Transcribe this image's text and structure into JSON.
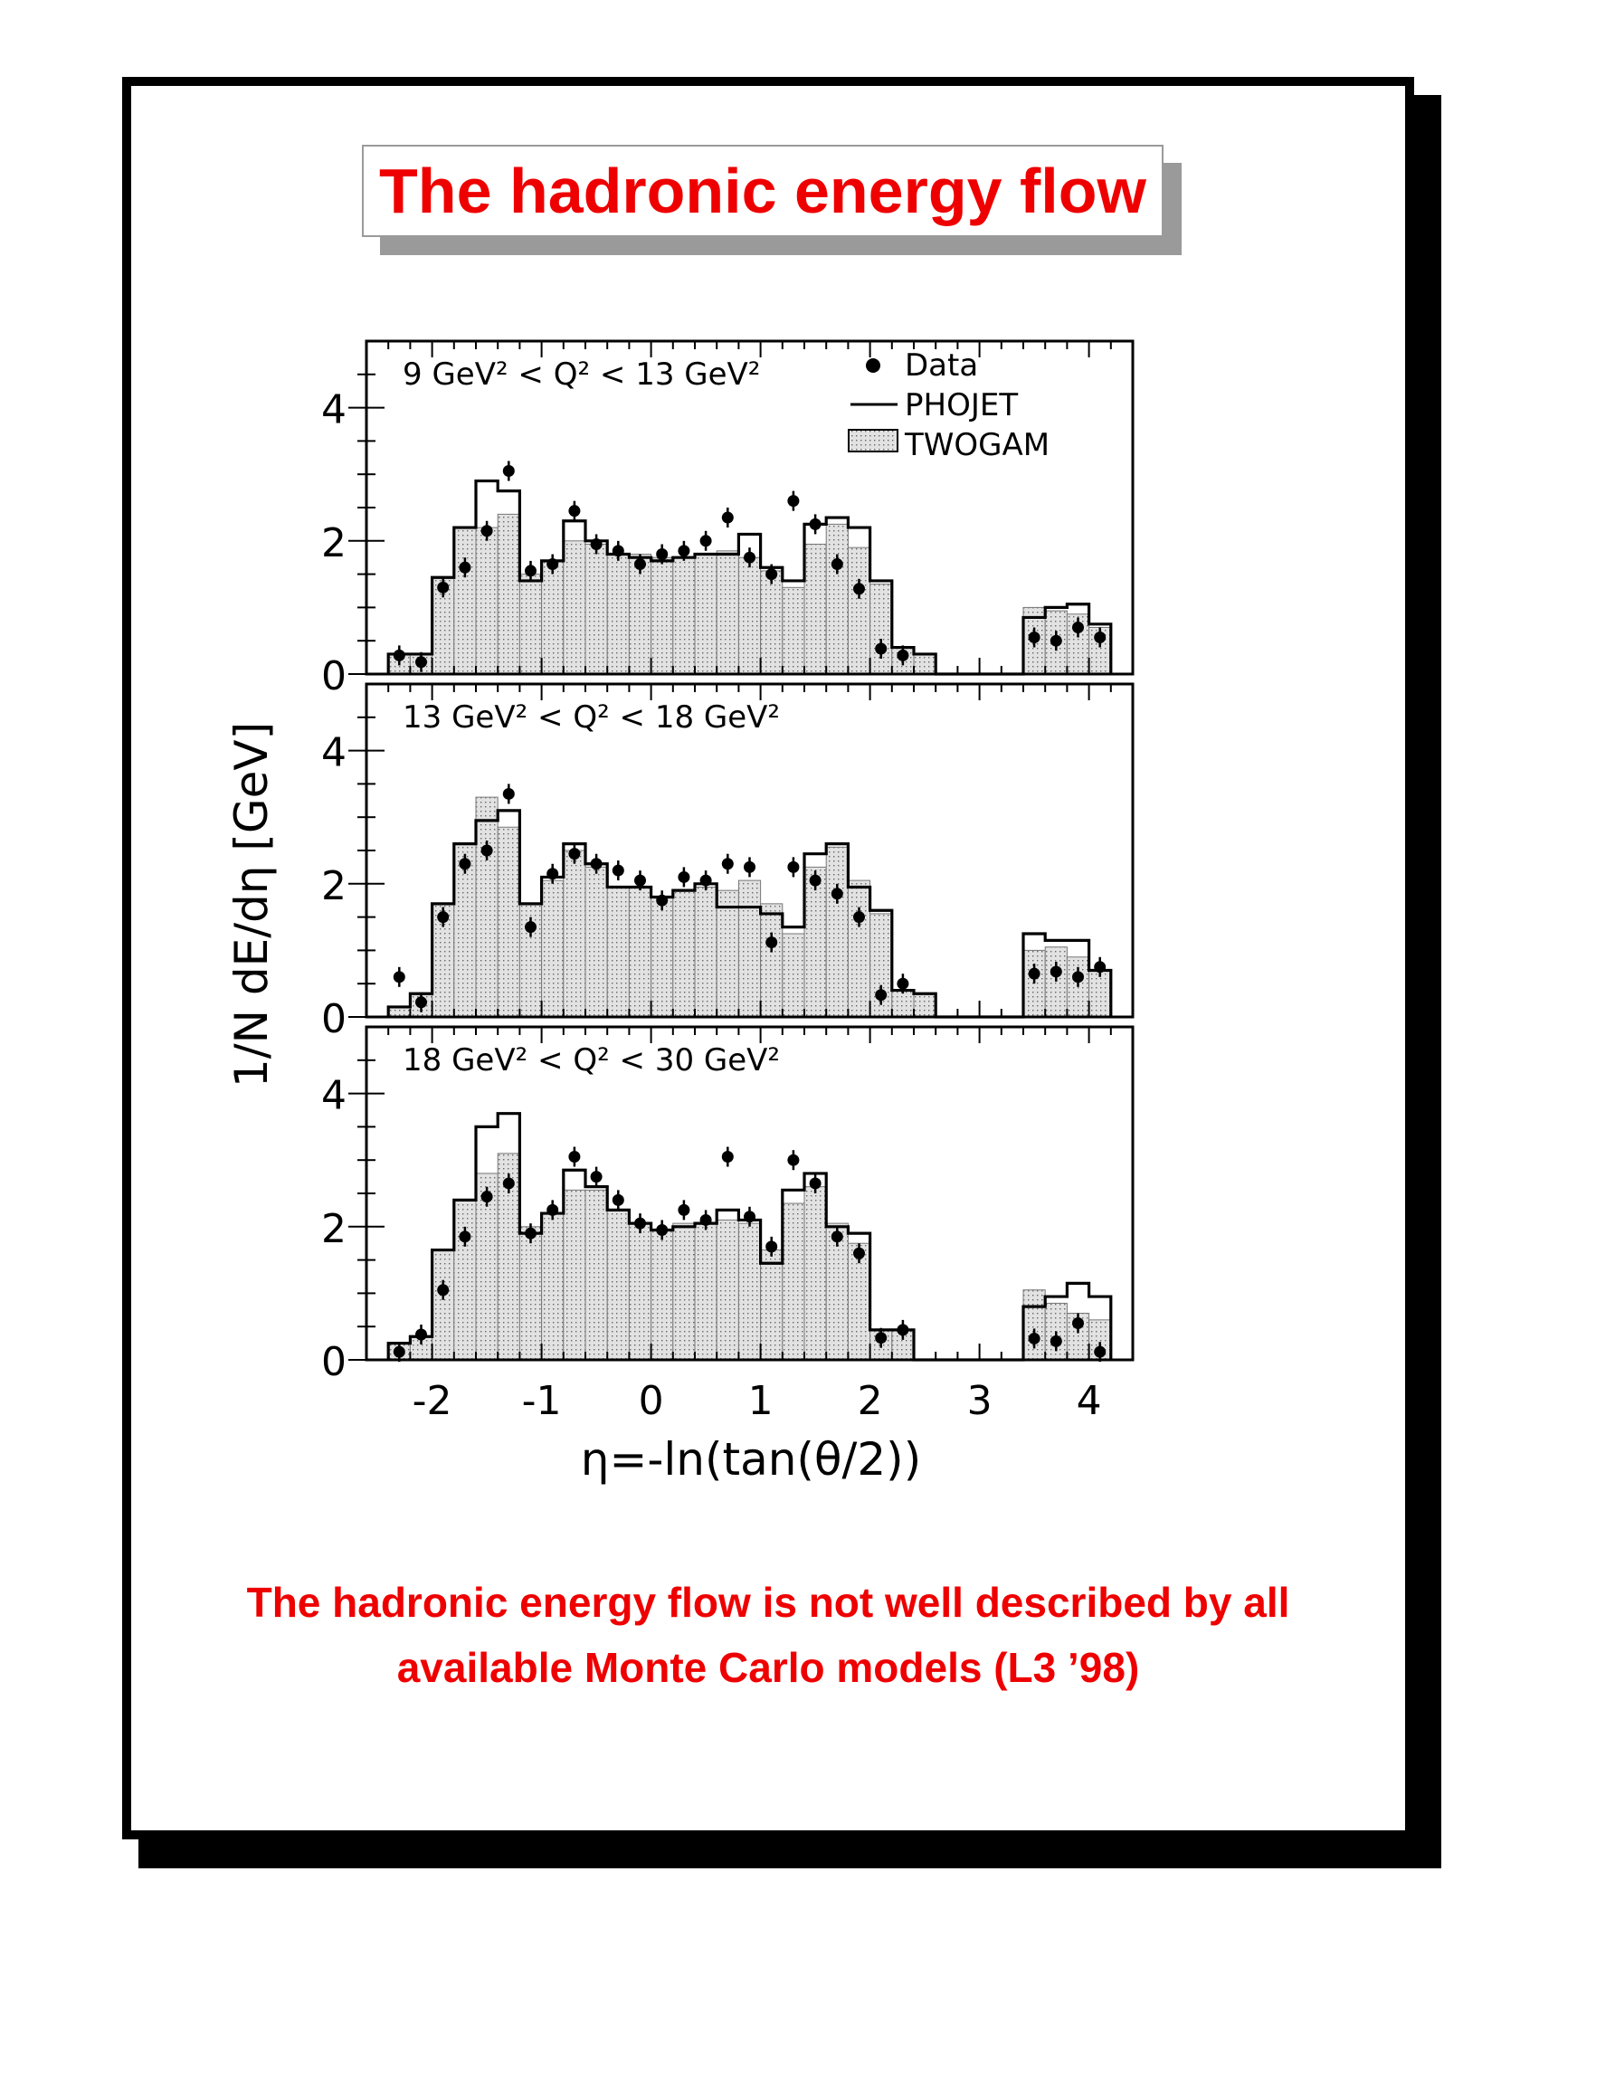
{
  "title": "The hadronic energy flow",
  "caption": {
    "line1": "The hadronic energy flow is not well described by all",
    "line2": "available Monte Carlo models (L3 ’98)"
  },
  "colors": {
    "accent": "#ee0000",
    "frame": "#000000",
    "title_shadow": "#9a9a9a",
    "fill": "#d8d8d8"
  },
  "chart_data": {
    "type": "histogram",
    "ylabel": "1/N dE/dη [GeV]",
    "xlabel": "η=-ln(tan(θ/2))",
    "xlim": [
      -2.6,
      4.4
    ],
    "ylim": [
      0,
      5
    ],
    "xticks": [
      "-2",
      "-1",
      "0",
      "1",
      "2",
      "3",
      "4"
    ],
    "yticks": [
      "0",
      "2",
      "4"
    ],
    "legend": {
      "position": "top-right",
      "entries": [
        "Data",
        "PHOJET",
        "TWOGAM"
      ]
    },
    "bin_edges": [
      -2.4,
      -2.2,
      -2.0,
      -1.8,
      -1.6,
      -1.4,
      -1.2,
      -1.0,
      -0.8,
      -0.6,
      -0.4,
      -0.2,
      0.0,
      0.2,
      0.4,
      0.6,
      0.8,
      1.0,
      1.2,
      1.4,
      1.6,
      1.8,
      2.0,
      2.2,
      2.4,
      2.6,
      2.8,
      3.0,
      3.2,
      3.4,
      3.6,
      3.8,
      4.0,
      4.2
    ],
    "panels": [
      {
        "label": "9 GeV² < Q² < 13 GeV²",
        "phojet": [
          0.3,
          0.3,
          1.45,
          2.2,
          2.9,
          2.75,
          1.4,
          1.7,
          2.3,
          2.0,
          1.8,
          1.75,
          1.7,
          1.75,
          1.8,
          1.8,
          2.1,
          1.6,
          1.4,
          2.25,
          2.35,
          2.2,
          1.4,
          0.4,
          0.3,
          0,
          0,
          0,
          0,
          0.85,
          1.0,
          1.05,
          0.75
        ],
        "twogam": [
          0.3,
          0.3,
          1.45,
          2.2,
          2.2,
          2.4,
          1.5,
          1.7,
          2.0,
          1.95,
          1.8,
          1.8,
          1.75,
          1.75,
          1.8,
          1.85,
          1.75,
          1.55,
          1.3,
          1.95,
          2.25,
          1.9,
          1.35,
          0.4,
          0.3,
          0,
          0,
          0,
          0,
          1.0,
          0.95,
          0.9,
          0.7
        ],
        "data_x": [
          -2.3,
          -2.1,
          -1.9,
          -1.7,
          -1.5,
          -1.3,
          -1.1,
          -0.9,
          -0.7,
          -0.5,
          -0.3,
          -0.1,
          0.1,
          0.3,
          0.5,
          0.7,
          0.9,
          1.1,
          1.3,
          1.5,
          1.7,
          1.9,
          2.1,
          2.3,
          3.5,
          3.7,
          3.9,
          4.1
        ],
        "data_y": [
          0.28,
          0.18,
          1.3,
          1.6,
          2.15,
          3.05,
          1.55,
          1.65,
          2.45,
          1.95,
          1.85,
          1.65,
          1.8,
          1.85,
          2.0,
          2.35,
          1.75,
          1.5,
          2.6,
          2.25,
          1.65,
          1.28,
          0.38,
          0.28,
          0.55,
          0.5,
          0.7,
          0.55
        ]
      },
      {
        "label": "13 GeV² < Q² < 18 GeV²",
        "phojet": [
          0.15,
          0.35,
          1.7,
          2.6,
          2.95,
          3.1,
          1.7,
          2.1,
          2.6,
          2.3,
          1.95,
          1.95,
          1.8,
          1.9,
          2.0,
          1.65,
          1.65,
          1.55,
          1.35,
          2.45,
          2.6,
          1.95,
          1.6,
          0.4,
          0.35,
          0,
          0,
          0,
          0,
          1.25,
          1.15,
          1.15,
          0.7
        ],
        "twogam": [
          0.15,
          0.35,
          1.7,
          2.6,
          3.3,
          2.85,
          1.7,
          2.05,
          2.5,
          2.25,
          1.95,
          1.95,
          1.8,
          1.9,
          1.95,
          1.9,
          2.05,
          1.7,
          1.25,
          2.25,
          2.55,
          2.05,
          1.55,
          0.4,
          0.35,
          0,
          0,
          0,
          0,
          1.0,
          1.05,
          0.9,
          0.7
        ],
        "data_x": [
          -2.3,
          -2.1,
          -1.9,
          -1.7,
          -1.5,
          -1.3,
          -1.1,
          -0.9,
          -0.7,
          -0.5,
          -0.3,
          -0.1,
          0.1,
          0.3,
          0.5,
          0.7,
          0.9,
          1.1,
          1.3,
          1.5,
          1.7,
          1.9,
          2.1,
          2.3,
          3.5,
          3.7,
          3.9,
          4.1
        ],
        "data_y": [
          0.6,
          0.22,
          1.5,
          2.3,
          2.5,
          3.35,
          1.35,
          2.15,
          2.45,
          2.3,
          2.2,
          2.05,
          1.75,
          2.1,
          2.05,
          2.3,
          2.25,
          1.12,
          2.25,
          2.05,
          1.85,
          1.5,
          0.33,
          0.5,
          0.65,
          0.68,
          0.6,
          0.75
        ]
      },
      {
        "label": "18 GeV² < Q² < 30 GeV²",
        "phojet": [
          0.25,
          0.35,
          1.65,
          2.4,
          3.5,
          3.7,
          1.9,
          2.2,
          2.85,
          2.6,
          2.25,
          2.05,
          1.95,
          2.0,
          2.05,
          2.25,
          2.1,
          1.45,
          2.55,
          2.8,
          2.0,
          1.9,
          0.45,
          0.45,
          0,
          0,
          0,
          0,
          0,
          0.8,
          0.95,
          1.15,
          0.95
        ],
        "twogam": [
          0.25,
          0.35,
          1.65,
          2.4,
          2.8,
          3.1,
          2.0,
          2.2,
          2.55,
          2.55,
          2.25,
          2.05,
          1.95,
          2.05,
          2.05,
          2.1,
          2.05,
          1.65,
          2.35,
          2.6,
          2.05,
          1.75,
          0.45,
          0.45,
          0,
          0,
          0,
          0,
          0,
          1.05,
          0.85,
          0.7,
          0.6
        ],
        "data_x": [
          -2.3,
          -2.1,
          -1.9,
          -1.7,
          -1.5,
          -1.3,
          -1.1,
          -0.9,
          -0.7,
          -0.5,
          -0.3,
          -0.1,
          0.1,
          0.3,
          0.5,
          0.7,
          0.9,
          1.1,
          1.3,
          1.5,
          1.7,
          1.9,
          2.1,
          2.3,
          3.5,
          3.7,
          3.9,
          4.1
        ],
        "data_y": [
          0.12,
          0.38,
          1.05,
          1.85,
          2.45,
          2.65,
          1.9,
          2.25,
          3.05,
          2.75,
          2.4,
          2.05,
          1.95,
          2.25,
          2.1,
          3.05,
          2.15,
          1.7,
          3.0,
          2.65,
          1.85,
          1.6,
          0.33,
          0.45,
          0.32,
          0.28,
          0.55,
          0.12
        ]
      }
    ]
  }
}
